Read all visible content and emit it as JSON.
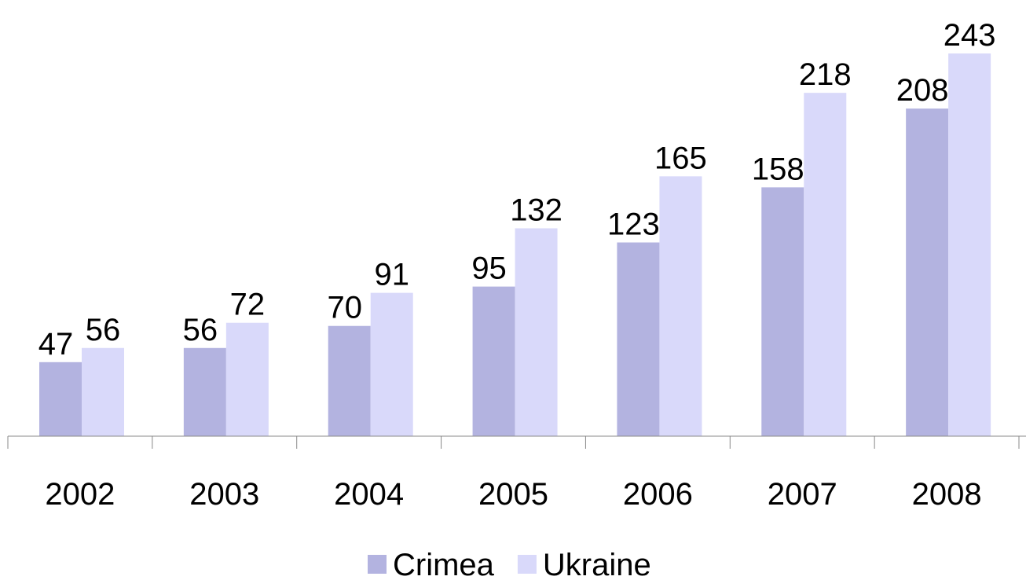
{
  "chart_data": {
    "type": "bar",
    "categories": [
      "2002",
      "2003",
      "2004",
      "2005",
      "2006",
      "2007",
      "2008"
    ],
    "series": [
      {
        "name": "Crimea",
        "color": "#b3b3e0",
        "values": [
          47,
          56,
          70,
          95,
          123,
          158,
          208
        ]
      },
      {
        "name": "Ukraine",
        "color": "#d9d9fa",
        "values": [
          56,
          72,
          91,
          132,
          165,
          218,
          243
        ]
      }
    ],
    "legend": "bottom"
  }
}
